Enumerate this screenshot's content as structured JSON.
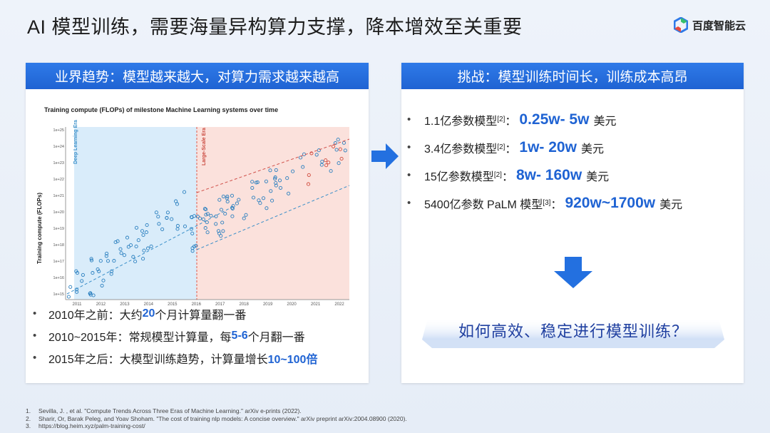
{
  "title": "AI 模型训练，需要海量异构算力支撑，降本增效至关重要",
  "logo": {
    "text": "百度智能云",
    "icon": "baidu-cloud-hex-icon"
  },
  "left_panel": {
    "header": "业界趋势：模型越来越大，对算力需求越来越高",
    "chart": {
      "title": "Training compute (FLOPs) of milestone Machine Learning systems over time",
      "ylabel": "Training compute (FLOPs)",
      "x_ticks": [
        "2011",
        "2012",
        "2013",
        "2014",
        "2015",
        "2016",
        "2017",
        "2018",
        "2019",
        "2020",
        "2021",
        "2022"
      ],
      "y_ticks": [
        "1e+15",
        "1e+16",
        "1e+17",
        "1e+18",
        "1e+19",
        "1e+20",
        "1e+21",
        "1e+22",
        "1e+23",
        "1e+24",
        "1e+25"
      ],
      "era_labels": [
        "Deep Learning Era",
        "Large-Scale Era"
      ]
    },
    "bullets": [
      {
        "pre": "2010年之前：大约",
        "hl": "20",
        "post": "个月计算量翻一番"
      },
      {
        "pre": "2010~2015年：常规模型计算量，每",
        "hl": "5-6",
        "post": "个月翻一番"
      },
      {
        "pre": "2015年之后：大模型训练趋势，计算量增长",
        "hl": "10~100倍",
        "post": ""
      }
    ]
  },
  "right_panel": {
    "header": "挑战：模型训练时间长，训练成本高昂",
    "items": [
      {
        "label": "1.1亿参数模型",
        "ref": "[2]",
        "colon": "：",
        "value": "0.25w- 5w",
        "unit": "美元"
      },
      {
        "label": "3.4亿参数模型",
        "ref": "[2]",
        "colon": "：",
        "value": "1w- 20w",
        "unit": "美元"
      },
      {
        "label": "15亿参数模型",
        "ref": "[2]",
        "colon": "：",
        "value": "8w- 160w",
        "unit": "美元"
      },
      {
        "label": "5400亿参数 PaLM 模型",
        "ref": "[3]",
        "colon": "：",
        "value": "920w~1700w",
        "unit": "美元"
      }
    ],
    "question": "如何高效、稳定进行模型训练？"
  },
  "references": [
    {
      "n": "1.",
      "text": "Sevilla, J. , et al. \"Compute Trends Across Three Eras of Machine Learning.\" arXiv e-prints (2022)."
    },
    {
      "n": "2.",
      "text": "Sharir, Or, Barak Peleg, and Yoav Shoham. \"The cost of training nlp models: A concise overview.\" arXiv preprint arXiv:2004.08900 (2020)."
    },
    {
      "n": "3.",
      "text": "https://blog.heim.xyz/palm-training-cost/"
    }
  ],
  "colors": {
    "accent": "#1f63d3",
    "header": "#2f7ae8",
    "deep_era": "#d8ecfa",
    "large_era": "#fbe0dc"
  }
}
